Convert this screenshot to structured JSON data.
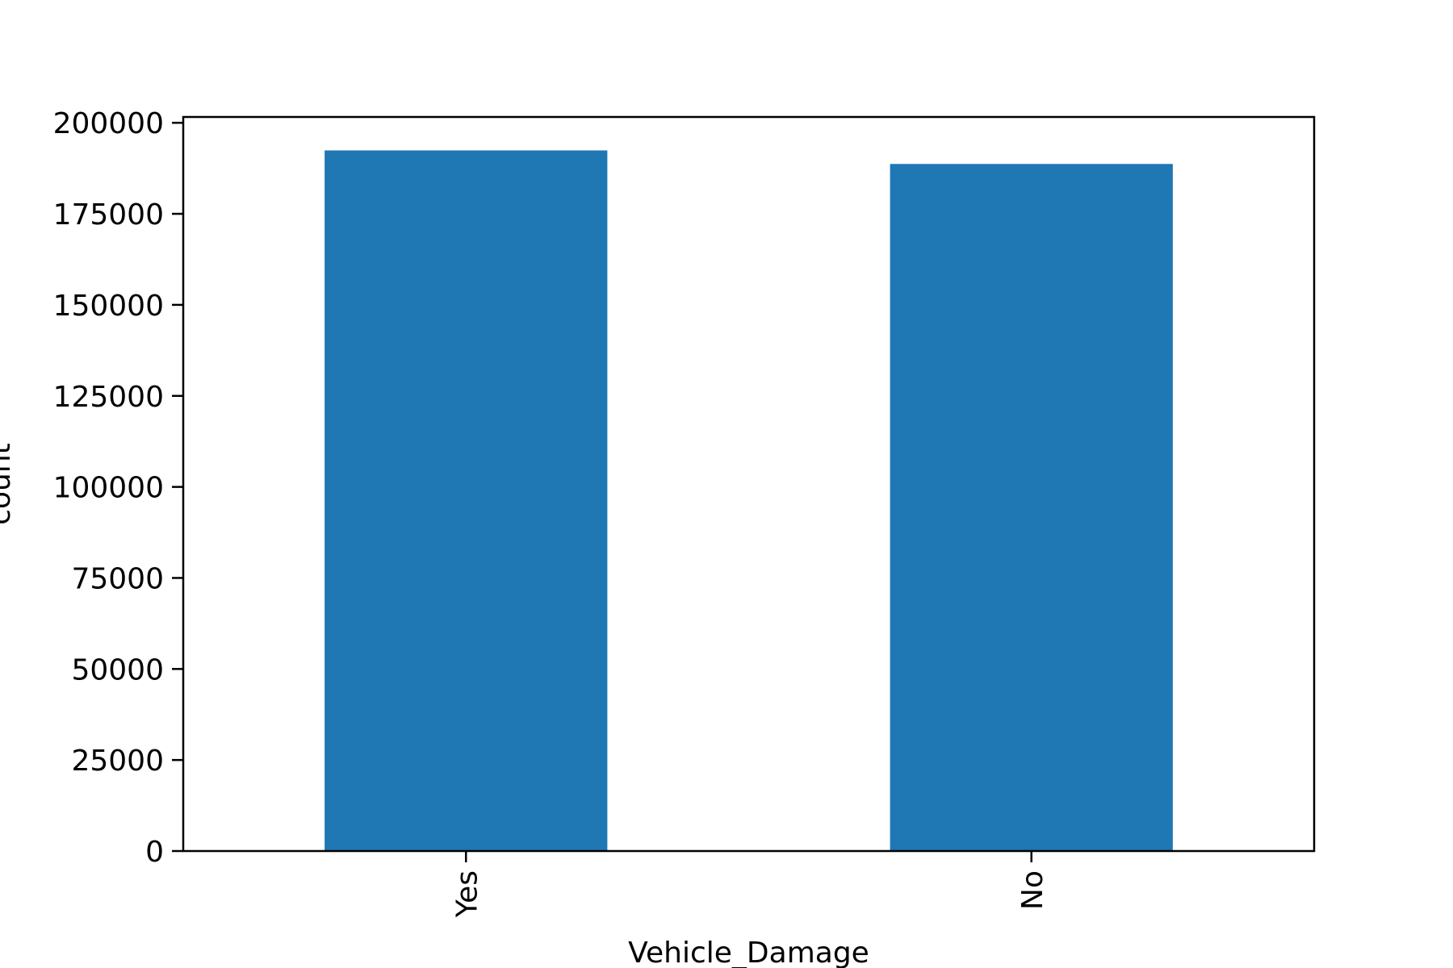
{
  "chart_data": {
    "type": "bar",
    "categories": [
      "Yes",
      "No"
    ],
    "values": [
      192413,
      188696
    ],
    "title": "",
    "xlabel": "Vehicle_Damage",
    "ylabel": "count",
    "ylim": [
      0,
      201600
    ],
    "yticks": [
      0,
      25000,
      50000,
      75000,
      100000,
      125000,
      150000,
      175000,
      200000
    ],
    "grid": false,
    "legend": "none",
    "colors": {
      "bar": "#1f77b4",
      "axes": "#000000",
      "background": "#ffffff"
    }
  }
}
